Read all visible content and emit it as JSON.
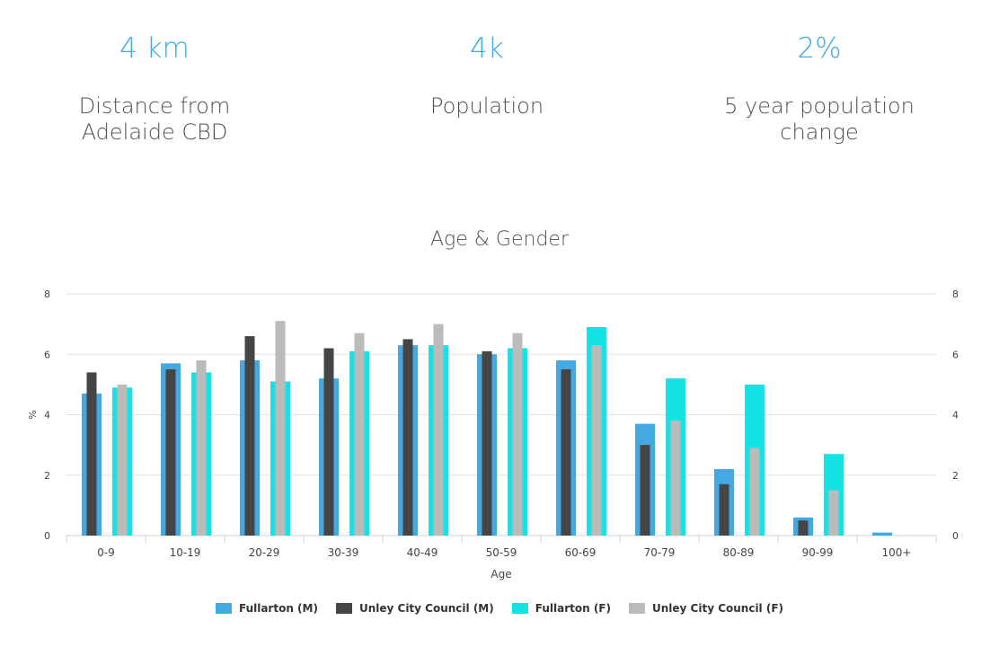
{
  "stats": [
    {
      "value": "4 km",
      "label": "Distance from Adelaide CBD"
    },
    {
      "value": "4k",
      "label": "Population"
    },
    {
      "value": "2%",
      "label": "5 year population change"
    }
  ],
  "colors": {
    "accent": "#45a9e1",
    "fullarton_m": "#45a9e1",
    "unley_m": "#454545",
    "fullarton_f": "#14e3e6",
    "unley_f": "#bdbaba",
    "grid": "#e2e2e2"
  },
  "chart_data": {
    "type": "bar",
    "title": "Age & Gender",
    "xlabel": "Age",
    "ylabel": "%",
    "ylim": [
      0,
      8
    ],
    "yticks": [
      "0",
      "2",
      "4",
      "6",
      "8"
    ],
    "categories": [
      "0-9",
      "10-19",
      "20-29",
      "30-39",
      "40-49",
      "50-59",
      "60-69",
      "70-79",
      "80-89",
      "90-99",
      "100+"
    ],
    "series": [
      {
        "name": "Fullarton (M)",
        "values": [
          4.7,
          5.7,
          5.8,
          5.2,
          6.3,
          6.0,
          5.8,
          3.7,
          2.2,
          0.6,
          0.1
        ]
      },
      {
        "name": "Unley City Council (M)",
        "values": [
          5.4,
          5.5,
          6.6,
          6.2,
          6.5,
          6.1,
          5.5,
          3.0,
          1.7,
          0.5,
          0.0
        ]
      },
      {
        "name": "Fullarton (F)",
        "values": [
          4.9,
          5.4,
          5.1,
          6.1,
          6.3,
          6.2,
          6.9,
          5.2,
          5.0,
          2.7,
          0.0
        ]
      },
      {
        "name": "Unley City Council (F)",
        "values": [
          5.0,
          5.8,
          7.1,
          6.7,
          7.0,
          6.7,
          6.3,
          3.8,
          2.9,
          1.5,
          0.0
        ]
      }
    ],
    "legend": [
      "Fullarton (M)",
      "Unley City Council (M)",
      "Fullarton (F)",
      "Unley City Council (F)"
    ]
  }
}
